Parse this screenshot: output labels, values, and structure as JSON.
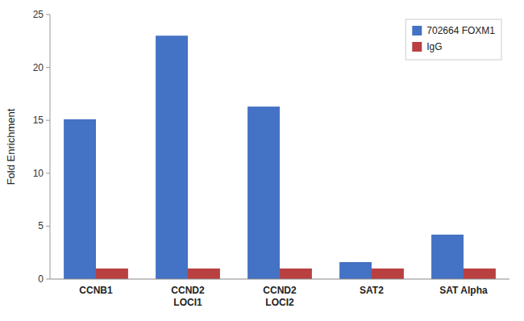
{
  "chart_data": {
    "type": "bar",
    "categories": [
      "CCNB1",
      "CCND2\nLOCI1",
      "CCND2\nLOCI2",
      "SAT2",
      "SAT Alpha"
    ],
    "series": [
      {
        "name": "702664 FOXM1",
        "color": "#4472C4",
        "values": [
          15.1,
          23.0,
          16.3,
          1.6,
          4.2
        ]
      },
      {
        "name": "IgG",
        "color": "#B94040",
        "values": [
          1.0,
          1.0,
          1.0,
          1.0,
          1.0
        ]
      }
    ],
    "y_label": "Fold Enrichment",
    "ylim": [
      0,
      25
    ],
    "yticks": [
      0,
      5,
      10,
      15,
      20,
      25
    ],
    "grid": false,
    "legend": "upper right"
  }
}
